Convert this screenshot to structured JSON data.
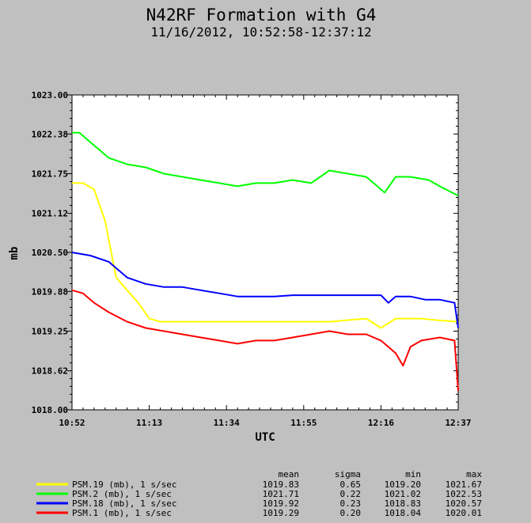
{
  "chart_data": {
    "type": "line",
    "title": "N42RF Formation with G4",
    "subtitle": "11/16/2012, 10:52:58-12:37:12",
    "xlabel": "UTC",
    "ylabel": "mb",
    "ylim": [
      1018.0,
      1023.0
    ],
    "y_ticks": [
      "1023.00",
      "1022.38",
      "1021.75",
      "1021.12",
      "1020.50",
      "1019.88",
      "1019.25",
      "1018.62",
      "1018.00"
    ],
    "x_ticks": [
      "10:52",
      "11:13",
      "11:34",
      "11:55",
      "12:16",
      "12:37"
    ],
    "x_tick_minutes": [
      0,
      21,
      42,
      63,
      84,
      105
    ],
    "stats_headers": [
      "mean",
      "sigma",
      "min",
      "max"
    ],
    "series": [
      {
        "name": "PSM.19 (mb), 1 s/sec",
        "color": "#ffff00",
        "stats": [
          "1019.83",
          "0.65",
          "1019.20",
          "1021.67"
        ],
        "x_minutes": [
          0,
          3,
          6,
          9,
          12,
          15,
          18,
          21,
          24,
          27,
          30,
          35,
          42,
          50,
          60,
          70,
          80,
          84,
          88,
          95,
          100,
          105
        ],
        "values": [
          1021.6,
          1021.6,
          1021.5,
          1021.0,
          1020.1,
          1019.9,
          1019.7,
          1019.45,
          1019.4,
          1019.4,
          1019.4,
          1019.4,
          1019.4,
          1019.4,
          1019.4,
          1019.4,
          1019.45,
          1019.3,
          1019.45,
          1019.45,
          1019.42,
          1019.4
        ]
      },
      {
        "name": "PSM.2 (mb), 1 s/sec",
        "color": "#00ff00",
        "stats": [
          "1021.71",
          "0.22",
          "1021.02",
          "1022.53"
        ],
        "x_minutes": [
          0,
          2,
          5,
          10,
          15,
          20,
          25,
          30,
          35,
          40,
          45,
          50,
          55,
          60,
          65,
          70,
          75,
          80,
          83,
          85,
          88,
          92,
          97,
          100,
          105
        ],
        "values": [
          1022.4,
          1022.4,
          1022.25,
          1022.0,
          1021.9,
          1021.85,
          1021.75,
          1021.7,
          1021.65,
          1021.6,
          1021.55,
          1021.6,
          1021.6,
          1021.65,
          1021.6,
          1021.8,
          1021.75,
          1021.7,
          1021.55,
          1021.45,
          1021.7,
          1021.7,
          1021.65,
          1021.55,
          1021.4
        ]
      },
      {
        "name": "PSM.18 (mb), 1 s/sec",
        "color": "#0000ff",
        "stats": [
          "1019.92",
          "0.23",
          "1018.83",
          "1020.57"
        ],
        "x_minutes": [
          0,
          5,
          10,
          15,
          20,
          25,
          30,
          35,
          40,
          45,
          50,
          55,
          60,
          65,
          70,
          75,
          80,
          84,
          86,
          88,
          92,
          96,
          100,
          104,
          105
        ],
        "values": [
          1020.5,
          1020.45,
          1020.35,
          1020.1,
          1020.0,
          1019.95,
          1019.95,
          1019.9,
          1019.85,
          1019.8,
          1019.8,
          1019.8,
          1019.82,
          1019.82,
          1019.82,
          1019.82,
          1019.82,
          1019.82,
          1019.7,
          1019.8,
          1019.8,
          1019.75,
          1019.75,
          1019.7,
          1019.3
        ]
      },
      {
        "name": "PSM.1 (mb), 1 s/sec",
        "color": "#ff0000",
        "stats": [
          "1019.29",
          "0.20",
          "1018.04",
          "1020.01"
        ],
        "x_minutes": [
          0,
          3,
          6,
          10,
          15,
          20,
          25,
          30,
          35,
          40,
          45,
          50,
          55,
          60,
          65,
          70,
          75,
          80,
          84,
          88,
          90,
          92,
          95,
          100,
          104,
          105
        ],
        "values": [
          1019.9,
          1019.85,
          1019.7,
          1019.55,
          1019.4,
          1019.3,
          1019.25,
          1019.2,
          1019.15,
          1019.1,
          1019.05,
          1019.1,
          1019.1,
          1019.15,
          1019.2,
          1019.25,
          1019.2,
          1019.2,
          1019.1,
          1018.9,
          1018.7,
          1019.0,
          1019.1,
          1019.15,
          1019.1,
          1018.3
        ]
      }
    ]
  }
}
